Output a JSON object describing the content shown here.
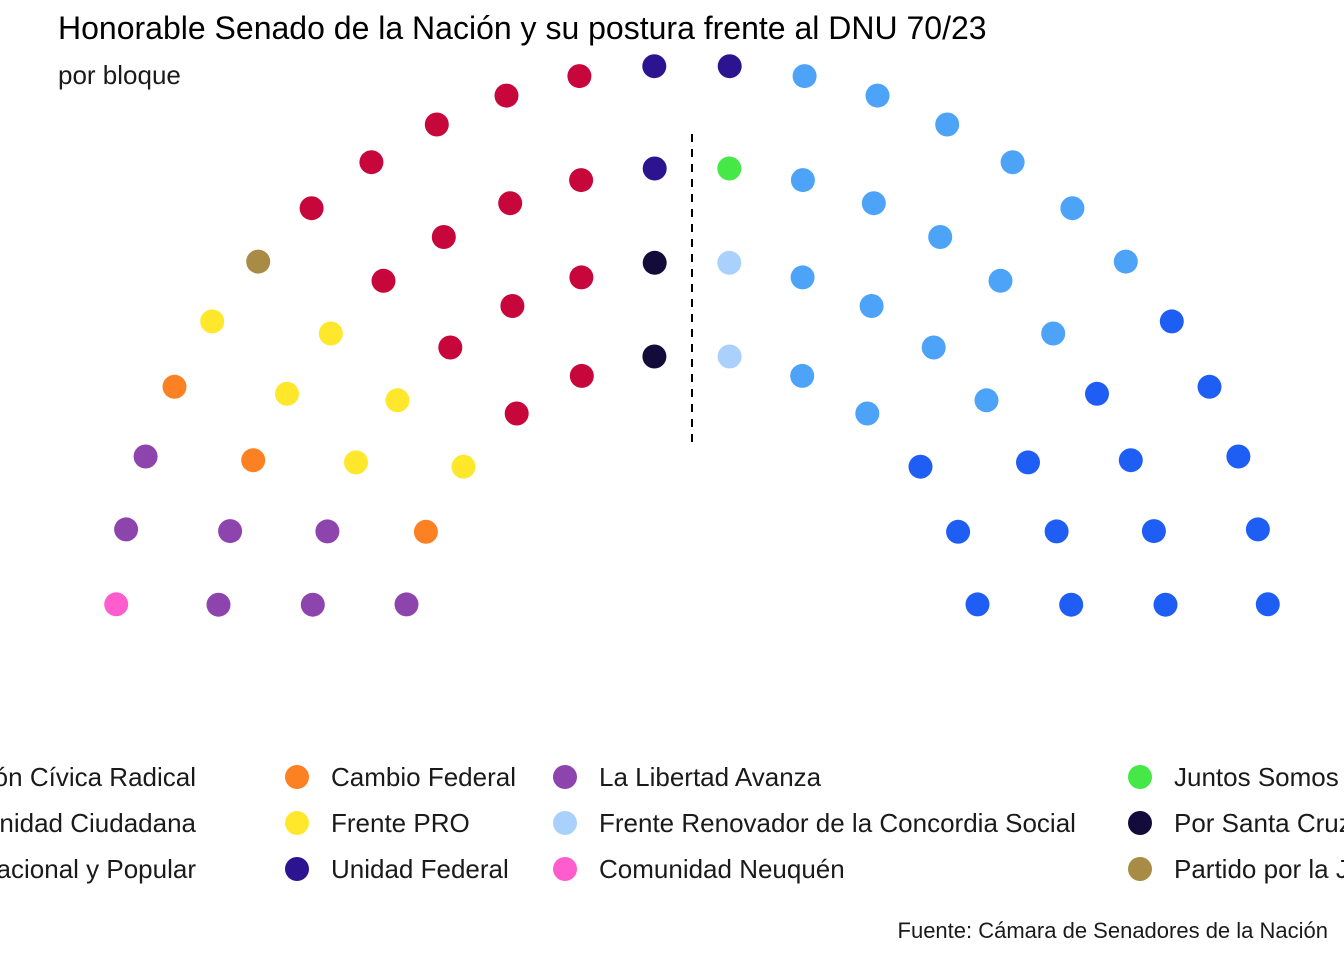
{
  "title": "Honorable Senado de la Nación y su postura frente al DNU 70/23",
  "subtitle": "por bloque",
  "caption": "Fuente: Cámara de Senadores de la Nación",
  "chart_data": {
    "type": "parliament",
    "total_seats": 72,
    "divider": "vertical-dashed-center",
    "legend_position": "bottom",
    "seats_left_to_right": [
      "Comunidad Neuquén",
      "La Libertad Avanza",
      "La Libertad Avanza",
      "La Libertad Avanza",
      "La Libertad Avanza",
      "La Libertad Avanza",
      "La Libertad Avanza",
      "La Libertad Avanza",
      "Cambio Federal",
      "Cambio Federal",
      "Cambio Federal",
      "Frente PRO",
      "Frente PRO",
      "Frente PRO",
      "Frente PRO",
      "Frente PRO",
      "Frente PRO",
      "Partido por la Justicia Social",
      "Frente Nacional y Popular",
      "Frente Nacional y Popular",
      "Frente Nacional y Popular",
      "Frente Nacional y Popular",
      "Frente Nacional y Popular",
      "Frente Nacional y Popular",
      "Frente Nacional y Popular",
      "Frente Nacional y Popular",
      "Frente Nacional y Popular",
      "Frente Nacional y Popular",
      "Frente Nacional y Popular",
      "Frente Nacional y Popular",
      "Frente Nacional y Popular",
      "Frente Nacional y Popular",
      "Por Santa Cruz",
      "Por Santa Cruz",
      "Unidad Federal",
      "Unidad Federal",
      "Unidad Federal",
      "Juntos Somos Río Negro",
      "Frente Renovador de la Concordia Social",
      "Frente Renovador de la Concordia Social",
      "Unidad Ciudadana",
      "Unidad Ciudadana",
      "Unidad Ciudadana",
      "Unidad Ciudadana",
      "Unidad Ciudadana",
      "Unidad Ciudadana",
      "Unidad Ciudadana",
      "Unidad Ciudadana",
      "Unidad Ciudadana",
      "Unidad Ciudadana",
      "Unidad Ciudadana",
      "Unidad Ciudadana",
      "Unidad Ciudadana",
      "Unidad Ciudadana",
      "Unidad Ciudadana",
      "Unidad Ciudadana",
      "Unidad Ciudadana",
      "Unión Cívica Radical",
      "Unión Cívica Radical",
      "Unión Cívica Radical",
      "Unión Cívica Radical",
      "Unión Cívica Radical",
      "Unión Cívica Radical",
      "Unión Cívica Radical",
      "Unión Cívica Radical",
      "Unión Cívica Radical",
      "Unión Cívica Radical",
      "Unión Cívica Radical",
      "Unión Cívica Radical",
      "Unión Cívica Radical",
      "Unión Cívica Radical",
      "Unión Cívica Radical"
    ],
    "legend": [
      {
        "name": "Unión Cívica Radical",
        "color": "#1f5ef5"
      },
      {
        "name": "Unidad Ciudadana",
        "color": "#4da3f7"
      },
      {
        "name": "Frente Nacional y Popular",
        "color": "#c7063c"
      },
      {
        "name": "Cambio Federal",
        "color": "#fb8122"
      },
      {
        "name": "Frente PRO",
        "color": "#ffe72b"
      },
      {
        "name": "Unidad Federal",
        "color": "#2c1390"
      },
      {
        "name": "La Libertad Avanza",
        "color": "#8e44ad"
      },
      {
        "name": "Frente Renovador de la Concordia Social",
        "color": "#a9d1fb"
      },
      {
        "name": "Comunidad Neuquén",
        "color": "#ff5ccd"
      },
      {
        "name": "Juntos Somos Río Negro",
        "color": "#45e846"
      },
      {
        "name": "Por Santa Cruz",
        "color": "#130c3a"
      },
      {
        "name": "Partido por la Justicia Social",
        "color": "#a88b45"
      }
    ]
  }
}
